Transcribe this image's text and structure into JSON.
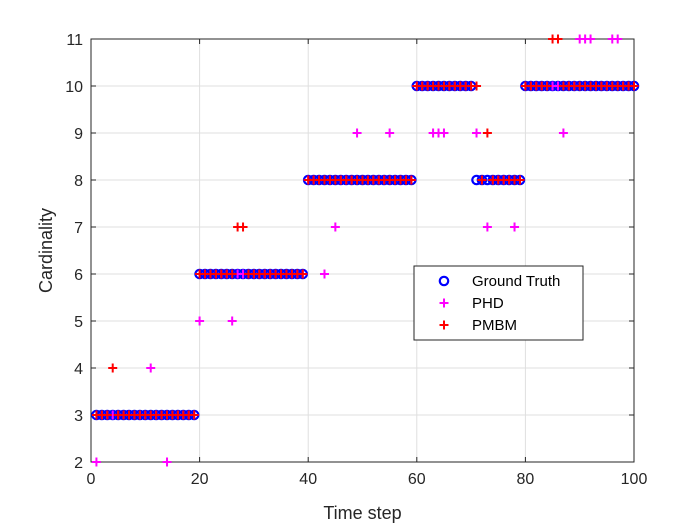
{
  "chart_data": {
    "type": "scatter",
    "title": "",
    "xlabel": "Time step",
    "ylabel": "Cardinality",
    "xlim": [
      0,
      100
    ],
    "ylim": [
      2,
      11
    ],
    "xticks": [
      0,
      20,
      40,
      60,
      80,
      100
    ],
    "yticks": [
      2,
      3,
      4,
      5,
      6,
      7,
      8,
      9,
      10,
      11
    ],
    "grid": true,
    "legend_position": "right-center",
    "series": [
      {
        "name": "Ground Truth",
        "marker": "circle",
        "color": "#0000ff",
        "x": [
          1,
          2,
          3,
          4,
          5,
          6,
          7,
          8,
          9,
          10,
          11,
          12,
          13,
          14,
          15,
          16,
          17,
          18,
          19,
          20,
          21,
          22,
          23,
          24,
          25,
          26,
          27,
          28,
          29,
          30,
          31,
          32,
          33,
          34,
          35,
          36,
          37,
          38,
          39,
          40,
          41,
          42,
          43,
          44,
          45,
          46,
          47,
          48,
          49,
          50,
          51,
          52,
          53,
          54,
          55,
          56,
          57,
          58,
          59,
          60,
          61,
          62,
          63,
          64,
          65,
          66,
          67,
          68,
          69,
          70,
          71,
          72,
          73,
          74,
          75,
          76,
          77,
          78,
          79,
          80,
          81,
          82,
          83,
          84,
          85,
          86,
          87,
          88,
          89,
          90,
          91,
          92,
          93,
          94,
          95,
          96,
          97,
          98,
          99,
          100
        ],
        "y": [
          3,
          3,
          3,
          3,
          3,
          3,
          3,
          3,
          3,
          3,
          3,
          3,
          3,
          3,
          3,
          3,
          3,
          3,
          3,
          6,
          6,
          6,
          6,
          6,
          6,
          6,
          6,
          6,
          6,
          6,
          6,
          6,
          6,
          6,
          6,
          6,
          6,
          6,
          6,
          8,
          8,
          8,
          8,
          8,
          8,
          8,
          8,
          8,
          8,
          8,
          8,
          8,
          8,
          8,
          8,
          8,
          8,
          8,
          8,
          10,
          10,
          10,
          10,
          10,
          10,
          10,
          10,
          10,
          10,
          10,
          8,
          8,
          8,
          8,
          8,
          8,
          8,
          8,
          8,
          10,
          10,
          10,
          10,
          10,
          10,
          10,
          10,
          10,
          10,
          10,
          10,
          10,
          10,
          10,
          10,
          10,
          10,
          10,
          10,
          10
        ]
      },
      {
        "name": "PHD",
        "marker": "plus",
        "color": "#ff00ff",
        "x": [
          1,
          2,
          3,
          4,
          5,
          6,
          7,
          8,
          9,
          10,
          11,
          12,
          13,
          14,
          15,
          16,
          17,
          18,
          19,
          20,
          21,
          22,
          23,
          24,
          25,
          26,
          27,
          28,
          29,
          30,
          31,
          32,
          33,
          34,
          35,
          36,
          37,
          38,
          39,
          40,
          41,
          42,
          43,
          44,
          45,
          46,
          47,
          48,
          49,
          50,
          51,
          52,
          53,
          54,
          55,
          56,
          57,
          58,
          59,
          60,
          61,
          62,
          63,
          64,
          65,
          66,
          67,
          68,
          69,
          70,
          71,
          72,
          73,
          74,
          75,
          76,
          77,
          78,
          79,
          80,
          81,
          82,
          83,
          84,
          85,
          86,
          87,
          88,
          89,
          90,
          91,
          92,
          93,
          94,
          95,
          96,
          97,
          98,
          99,
          100
        ],
        "y": [
          2,
          3,
          3,
          3,
          3,
          3,
          3,
          3,
          3,
          3,
          4,
          3,
          3,
          2,
          3,
          3,
          3,
          3,
          3,
          5,
          6,
          6,
          6,
          6,
          6,
          5,
          6,
          6,
          6,
          6,
          6,
          6,
          6,
          6,
          6,
          6,
          6,
          6,
          6,
          8,
          8,
          8,
          6,
          8,
          7,
          8,
          8,
          8,
          9,
          8,
          8,
          8,
          8,
          8,
          9,
          8,
          8,
          8,
          8,
          10,
          10,
          10,
          9,
          9,
          9,
          10,
          10,
          10,
          10,
          10,
          9,
          8,
          7,
          8,
          8,
          8,
          8,
          7,
          8,
          10,
          10,
          10,
          10,
          10,
          10,
          10,
          9,
          10,
          10,
          11,
          11,
          11,
          10,
          10,
          10,
          11,
          11,
          10,
          10,
          10
        ]
      },
      {
        "name": "PMBM",
        "marker": "plus",
        "color": "#ff0000",
        "x": [
          1,
          2,
          3,
          4,
          5,
          6,
          7,
          8,
          9,
          10,
          11,
          12,
          13,
          14,
          15,
          16,
          17,
          18,
          19,
          20,
          21,
          22,
          23,
          24,
          25,
          26,
          27,
          28,
          29,
          30,
          31,
          32,
          33,
          34,
          35,
          36,
          37,
          38,
          39,
          40,
          41,
          42,
          43,
          44,
          45,
          46,
          47,
          48,
          49,
          50,
          51,
          52,
          53,
          54,
          55,
          56,
          57,
          58,
          59,
          60,
          61,
          62,
          63,
          64,
          65,
          66,
          67,
          68,
          69,
          70,
          71,
          72,
          73,
          74,
          75,
          76,
          77,
          78,
          79,
          80,
          81,
          82,
          83,
          84,
          85,
          86,
          87,
          88,
          89,
          90,
          91,
          92,
          93,
          94,
          95,
          96,
          97,
          98,
          99,
          100
        ],
        "y": [
          3,
          3,
          3,
          4,
          3,
          3,
          3,
          3,
          3,
          3,
          3,
          3,
          3,
          3,
          3,
          3,
          3,
          3,
          3,
          6,
          6,
          6,
          6,
          6,
          6,
          6,
          7,
          7,
          6,
          6,
          6,
          6,
          6,
          6,
          6,
          6,
          6,
          6,
          6,
          8,
          8,
          8,
          8,
          8,
          8,
          8,
          8,
          8,
          8,
          8,
          8,
          8,
          8,
          8,
          8,
          8,
          8,
          8,
          8,
          10,
          10,
          10,
          10,
          10,
          10,
          10,
          10,
          10,
          10,
          10,
          10,
          8,
          9,
          8,
          8,
          8,
          8,
          8,
          8,
          10,
          10,
          10,
          10,
          10,
          11,
          11,
          10,
          10,
          10,
          10,
          10,
          10,
          10,
          10,
          10,
          10,
          10,
          10,
          10,
          10
        ]
      }
    ]
  }
}
